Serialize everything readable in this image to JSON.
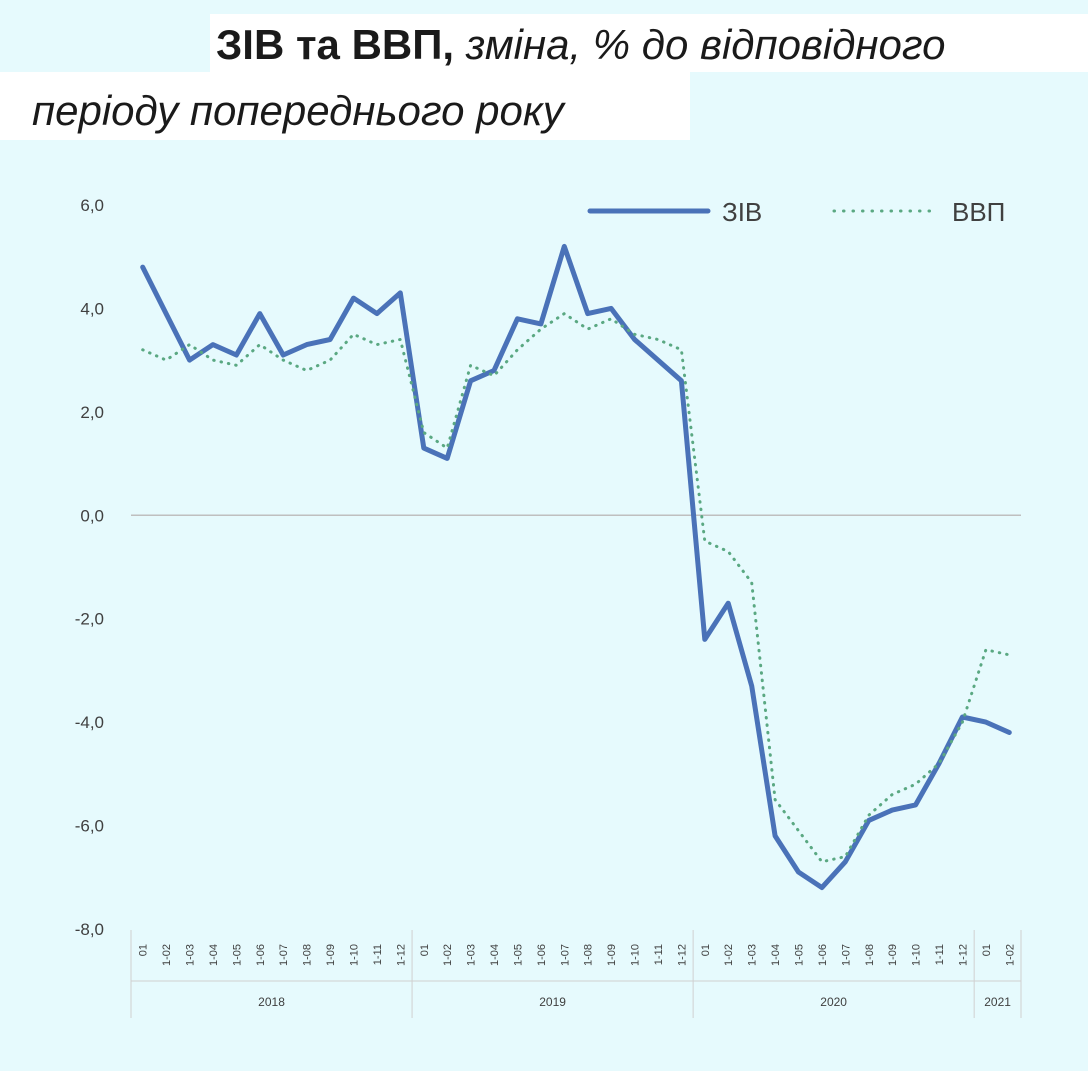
{
  "title": {
    "bold": "ЗІВ та ВВП,",
    "italic_line1": "зміна, % до відповідного",
    "italic_line2": "періоду попереднього року"
  },
  "colors": {
    "background": "#e6fafd",
    "ziv": "#4a72b8",
    "vvp": "#5aa882",
    "zero_line": "#bfbfbf",
    "axis_text": "#404040"
  },
  "chart_data": {
    "type": "line",
    "y_ticks": [
      "6,0",
      "4,0",
      "2,0",
      "0,0",
      "-2,0",
      "-4,0",
      "-6,0",
      "-8,0"
    ],
    "ylim": [
      -8,
      6
    ],
    "grid": false,
    "legend_position": "top-right",
    "categories": [
      "01",
      "1-02",
      "1-03",
      "1-04",
      "1-05",
      "1-06",
      "1-07",
      "1-08",
      "1-09",
      "1-10",
      "1-11",
      "1-12",
      "01",
      "1-02",
      "1-03",
      "1-04",
      "1-05",
      "1-06",
      "1-07",
      "1-08",
      "1-09",
      "1-10",
      "1-11",
      "1-12",
      "01",
      "1-02",
      "1-03",
      "1-04",
      "1-05",
      "1-06",
      "1-07",
      "1-08",
      "1-09",
      "1-10",
      "1-11",
      "1-12",
      "01",
      "1-02"
    ],
    "year_groups": [
      {
        "label": "2018",
        "count": 12
      },
      {
        "label": "2019",
        "count": 12
      },
      {
        "label": "2020",
        "count": 12
      },
      {
        "label": "2021",
        "count": 2
      }
    ],
    "series": [
      {
        "name": "ЗІВ",
        "style": "solid",
        "values": [
          4.8,
          3.9,
          3.0,
          3.3,
          3.1,
          3.9,
          3.1,
          3.3,
          3.4,
          4.2,
          3.9,
          4.3,
          1.3,
          1.1,
          2.6,
          2.8,
          3.8,
          3.7,
          5.2,
          3.9,
          4.0,
          3.4,
          3.0,
          2.6,
          -2.4,
          -1.7,
          -3.3,
          -6.2,
          -6.9,
          -7.2,
          -6.7,
          -5.9,
          -5.7,
          -5.6,
          -4.8,
          -3.9,
          -4.0,
          -4.2
        ]
      },
      {
        "name": "ВВП",
        "style": "dotted",
        "values": [
          3.2,
          3.0,
          3.3,
          3.0,
          2.9,
          3.3,
          3.0,
          2.8,
          3.0,
          3.5,
          3.3,
          3.4,
          1.6,
          1.3,
          2.9,
          2.7,
          3.2,
          3.6,
          3.9,
          3.6,
          3.8,
          3.5,
          3.4,
          3.2,
          -0.5,
          -0.7,
          -1.3,
          -5.5,
          -6.1,
          -6.7,
          -6.6,
          -5.8,
          -5.4,
          -5.2,
          -4.8,
          -4.0,
          -2.6,
          -2.7
        ]
      }
    ]
  }
}
